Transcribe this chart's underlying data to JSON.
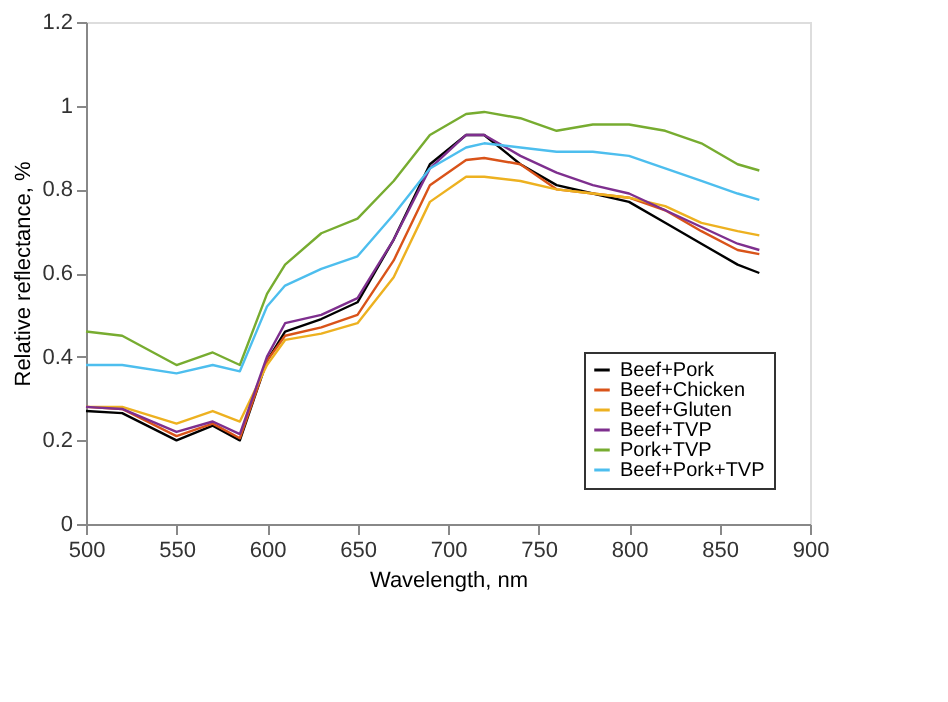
{
  "chart_data": {
    "type": "line",
    "xlabel": "Wavelength, nm",
    "ylabel": "Relative reflectance, %",
    "x": [
      500,
      520,
      550,
      570,
      585,
      600,
      610,
      630,
      650,
      670,
      690,
      710,
      720,
      740,
      760,
      780,
      800,
      820,
      840,
      860,
      872
    ],
    "xlim": [
      500,
      900
    ],
    "xticks": [
      500,
      550,
      600,
      650,
      700,
      750,
      800,
      850,
      900
    ],
    "ylim": [
      0,
      1.2
    ],
    "yticks": [
      0,
      0.2,
      0.4,
      0.6,
      0.8,
      1,
      1.2
    ],
    "grid": false,
    "legend": "bottom right",
    "marker": "none",
    "line_style": "solid",
    "series": [
      {
        "name": "Beef+Pork",
        "color": "#000000",
        "values": [
          0.27,
          0.265,
          0.2,
          0.235,
          0.2,
          0.39,
          0.46,
          0.49,
          0.53,
          0.68,
          0.86,
          0.93,
          0.93,
          0.86,
          0.81,
          0.79,
          0.77,
          0.72,
          0.67,
          0.62,
          0.6
        ]
      },
      {
        "name": "Beef+Chicken",
        "color": "#d95319",
        "values": [
          0.28,
          0.275,
          0.21,
          0.24,
          0.205,
          0.39,
          0.45,
          0.47,
          0.5,
          0.63,
          0.81,
          0.87,
          0.875,
          0.86,
          0.8,
          0.79,
          0.78,
          0.75,
          0.7,
          0.655,
          0.645
        ]
      },
      {
        "name": "Beef+Gluten",
        "color": "#edb120",
        "values": [
          0.28,
          0.28,
          0.24,
          0.27,
          0.245,
          0.38,
          0.44,
          0.455,
          0.48,
          0.59,
          0.77,
          0.83,
          0.83,
          0.82,
          0.8,
          0.79,
          0.78,
          0.76,
          0.72,
          0.7,
          0.69
        ]
      },
      {
        "name": "Beef+TVP",
        "color": "#7e2f8e",
        "values": [
          0.28,
          0.275,
          0.22,
          0.245,
          0.215,
          0.4,
          0.48,
          0.5,
          0.54,
          0.68,
          0.85,
          0.93,
          0.93,
          0.88,
          0.84,
          0.81,
          0.79,
          0.75,
          0.71,
          0.67,
          0.655
        ]
      },
      {
        "name": "Pork+TVP",
        "color": "#77ac30",
        "values": [
          0.46,
          0.45,
          0.38,
          0.41,
          0.38,
          0.55,
          0.62,
          0.695,
          0.73,
          0.82,
          0.93,
          0.98,
          0.985,
          0.97,
          0.94,
          0.955,
          0.955,
          0.94,
          0.91,
          0.86,
          0.845
        ]
      },
      {
        "name": "Beef+Pork+TVP",
        "color": "#4dbeee",
        "values": [
          0.38,
          0.38,
          0.36,
          0.38,
          0.365,
          0.52,
          0.57,
          0.61,
          0.64,
          0.74,
          0.85,
          0.9,
          0.91,
          0.9,
          0.89,
          0.89,
          0.88,
          0.85,
          0.82,
          0.79,
          0.775
        ]
      }
    ]
  }
}
